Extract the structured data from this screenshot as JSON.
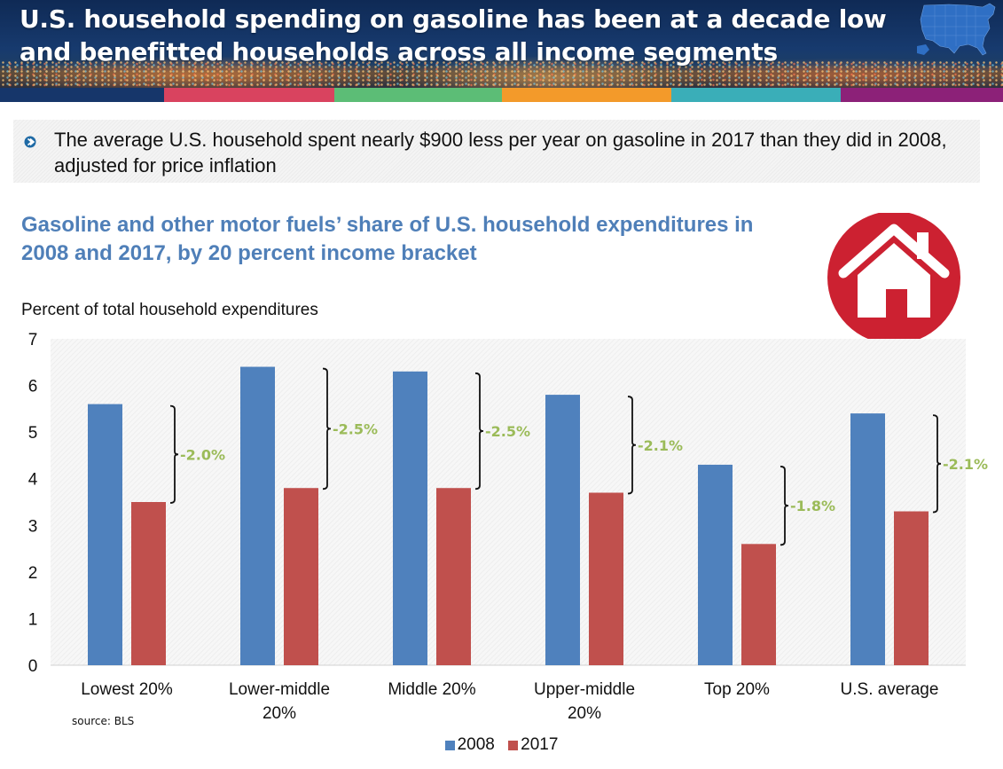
{
  "header": {
    "title_line1": "U.S. household spending on gasoline has been at a decade low",
    "title_line2": "and benefitted households across all income segments",
    "map_icon": "us-map-icon",
    "band_colors": [
      "#16366a",
      "#d9435f",
      "#5cbd76",
      "#f39a2a",
      "#3aaeb8",
      "#8c2178"
    ]
  },
  "note": {
    "bullet_icon": "chevron-right-bullet-icon",
    "text": "The average U.S. household spent nearly $900 less per year on gasoline in 2017 than they did in 2008, adjusted for price inflation"
  },
  "house_icon": {
    "name": "house-icon",
    "color": "#cc2131"
  },
  "source": "source: BLS",
  "chart_data": {
    "type": "bar",
    "title": "Gasoline and other motor fuels’ share of U.S. household expenditures in 2008 and 2017, by 20 percent income bracket",
    "xlabel": "",
    "ylabel": "Percent of total household expenditures",
    "ylim": [
      0,
      7
    ],
    "yticks": [
      "0",
      "1",
      "2",
      "3",
      "4",
      "5",
      "6",
      "7"
    ],
    "grid": false,
    "legend_position": "bottom",
    "categories": [
      [
        "Lowest 20%"
      ],
      [
        "Lower-middle",
        "20%"
      ],
      [
        "Middle 20%"
      ],
      [
        "Upper-middle",
        "20%"
      ],
      [
        "Top 20%"
      ],
      [
        "U.S. average"
      ]
    ],
    "series": [
      {
        "name": "2008",
        "color": "#4f81bd",
        "values": [
          5.6,
          6.4,
          6.3,
          5.8,
          4.3,
          5.4
        ]
      },
      {
        "name": "2017",
        "color": "#c0504d",
        "values": [
          3.5,
          3.8,
          3.8,
          3.7,
          2.6,
          3.3
        ]
      }
    ],
    "annotations": {
      "type": "bracket-difference",
      "color": "#9bbb59",
      "labels": [
        "-2.0%",
        "-2.5%",
        "-2.5%",
        "-2.1%",
        "-1.8%",
        "-2.1%"
      ]
    }
  }
}
